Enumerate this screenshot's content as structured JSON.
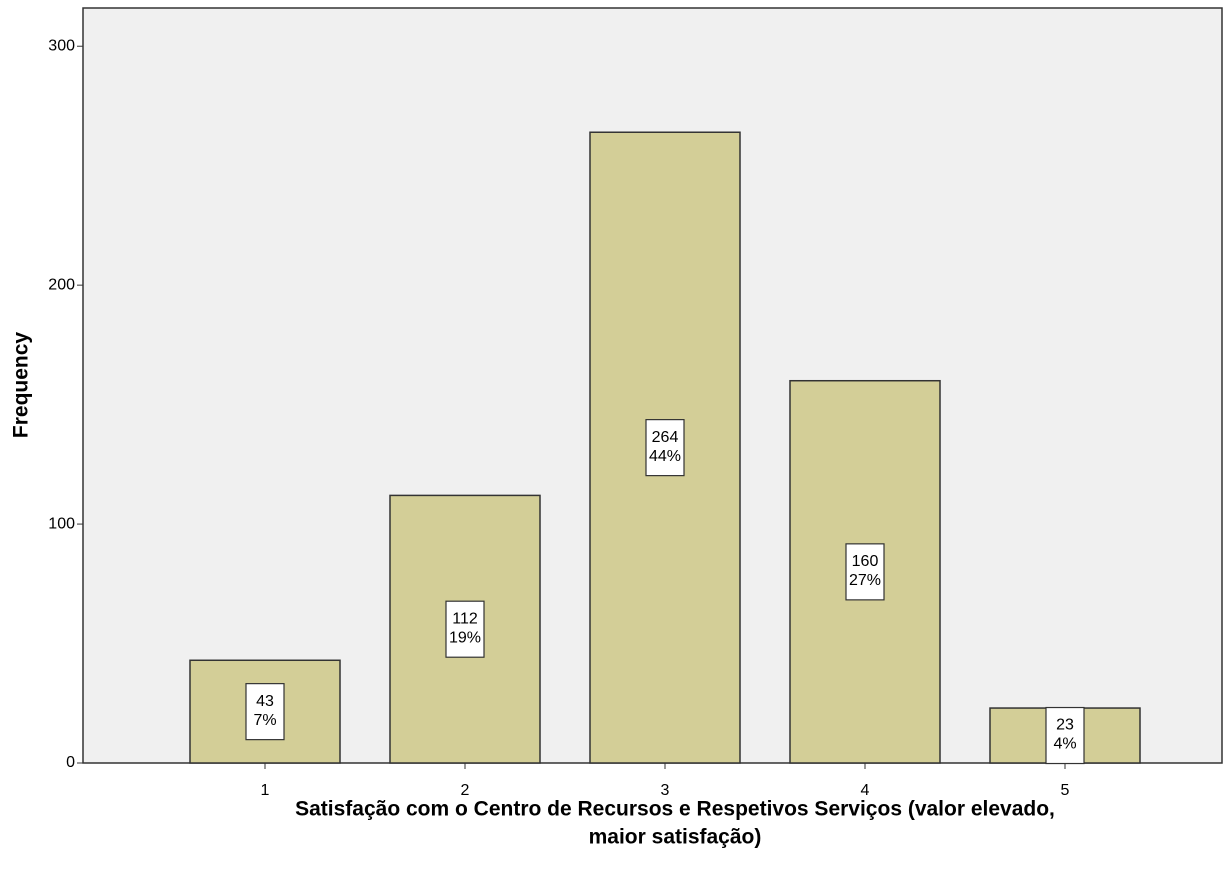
{
  "chart_data": {
    "type": "bar",
    "x_label_lines": [
      "Satisfação com o Centro de Recursos e Respetivos Serviços (valor elevado,",
      "maior satisfação)"
    ],
    "y_label": "Frequency",
    "categories": [
      "1",
      "2",
      "3",
      "4",
      "5"
    ],
    "values": [
      43,
      112,
      264,
      160,
      23
    ],
    "percentage_labels": [
      "7%",
      "19%",
      "44%",
      "27%",
      "4%"
    ],
    "color": "#d3ce97",
    "ylim": [
      0,
      316
    ],
    "yticks": [
      0,
      100,
      200,
      300
    ]
  }
}
